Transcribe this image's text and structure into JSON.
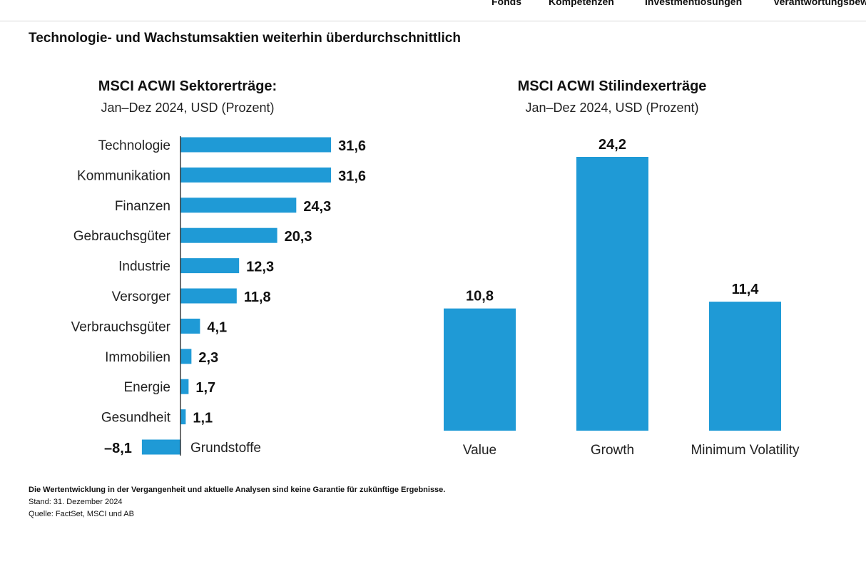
{
  "nav": {
    "items": [
      "Fonds",
      "Kompetenzen",
      "Investmentlösungen",
      "Verantwortungsbew"
    ]
  },
  "main_title": "Technologie- und Wachstumsaktien weiterhin überdurchschnittlich",
  "chart_data": [
    {
      "type": "bar",
      "orientation": "horizontal",
      "title": "MSCI ACWI Sektorerträge:",
      "subtitle": "Jan–Dez 2024, USD (Prozent)",
      "categories": [
        "Technologie",
        "Kommunikation",
        "Finanzen",
        "Gebrauchsgüter",
        "Industrie",
        "Versorger",
        "Verbrauchsgüter",
        "Immobilien",
        "Energie",
        "Gesundheit",
        "Grundstoffe"
      ],
      "values": [
        31.6,
        31.6,
        24.3,
        20.3,
        12.3,
        11.8,
        4.1,
        2.3,
        1.7,
        1.1,
        -8.1
      ],
      "data_labels": [
        "31,6",
        "31,6",
        "24,3",
        "20,3",
        "12,3",
        "11,8",
        "4,1",
        "2,3",
        "1,7",
        "1,1",
        "–8,1"
      ],
      "color": "#1f9ad6",
      "grid": false
    },
    {
      "type": "bar",
      "orientation": "vertical",
      "title": "MSCI ACWI Stilindexerträge",
      "subtitle": "Jan–Dez 2024, USD (Prozent)",
      "categories": [
        "Value",
        "Growth",
        "Minimum Volatility"
      ],
      "values": [
        10.8,
        24.2,
        11.4
      ],
      "data_labels": [
        "10,8",
        "24,2",
        "11,4"
      ],
      "color": "#1f9ad6",
      "grid": false
    }
  ],
  "footer": {
    "disclaimer": "Die Wertentwicklung in der Vergangenheit und aktuelle Analysen sind keine Garantie für zukünftige Ergebnisse.",
    "date": "Stand: 31. Dezember 2024",
    "source": "Quelle: FactSet, MSCI und AB"
  }
}
